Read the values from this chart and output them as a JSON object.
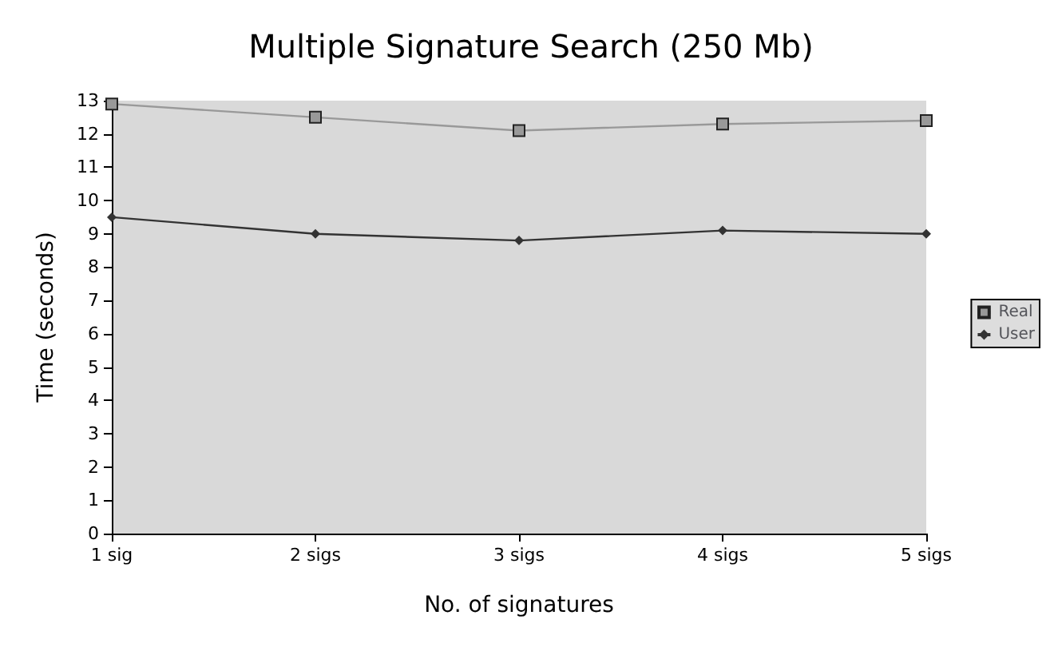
{
  "chart_data": {
    "type": "line",
    "title": "Multiple Signature Search (250 Mb)",
    "xlabel": "No. of signatures",
    "ylabel": "Time (seconds)",
    "categories": [
      "1 sig",
      "2 sigs",
      "3 sigs",
      "4 sigs",
      "5 sigs"
    ],
    "series": [
      {
        "name": "Real",
        "color": "#999999",
        "marker": "square",
        "values": [
          12.9,
          12.5,
          12.1,
          12.3,
          12.4
        ]
      },
      {
        "name": "User",
        "color": "#333333",
        "marker": "diamond",
        "values": [
          9.5,
          9.0,
          8.8,
          9.1,
          9.0
        ]
      }
    ],
    "ylim": [
      0,
      13
    ],
    "yticks": [
      0,
      1,
      2,
      3,
      4,
      5,
      6,
      7,
      8,
      9,
      10,
      11,
      12,
      13
    ],
    "grid": false,
    "legend": "right"
  }
}
